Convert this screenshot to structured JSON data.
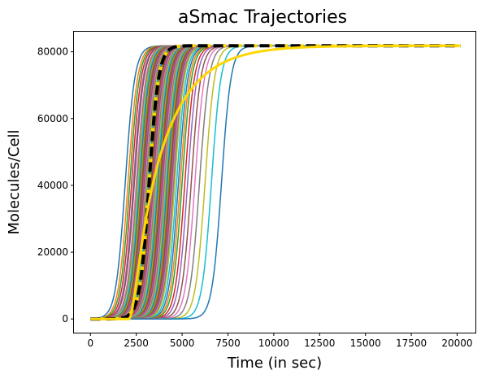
{
  "chart_data": {
    "type": "line",
    "title": "aSmac Trajectories",
    "xlabel": "Time (in sec)",
    "ylabel": "Molecules/Cell",
    "xlim": [
      -900,
      21000
    ],
    "ylim": [
      -4100,
      86000
    ],
    "xticks": [
      0,
      2500,
      5000,
      7500,
      10000,
      12500,
      15000,
      17500,
      20000
    ],
    "yticks": [
      0,
      20000,
      40000,
      60000,
      80000
    ],
    "grid": false,
    "legend": "none",
    "plateau": 81800,
    "x_end": 20200,
    "trajectory_half_max_times": [
      1900,
      2050,
      2150,
      2250,
      2350,
      2400,
      2500,
      2550,
      2600,
      2650,
      2700,
      2750,
      2800,
      2850,
      2900,
      2950,
      3000,
      3050,
      3100,
      3150,
      3200,
      3250,
      3300,
      3350,
      3400,
      3450,
      3500,
      3550,
      3600,
      3650,
      3700,
      3750,
      3800,
      3850,
      3900,
      3950,
      4000,
      4050,
      4100,
      4150,
      4200,
      4250,
      4300,
      4350,
      4400,
      4450,
      4500,
      4550,
      4600,
      4700,
      4800,
      4900,
      5000,
      5150,
      5300,
      5500,
      5700,
      5950,
      6250,
      6600,
      7150
    ],
    "trajectory_colors": [
      "#1f77b4",
      "#ff7f0e",
      "#2ca02c",
      "#d62728",
      "#9467bd",
      "#8c564b",
      "#e377c2",
      "#7f7f7f",
      "#bcbd22",
      "#17becf"
    ],
    "reference_curves": [
      {
        "style": "black-dashed",
        "color": "#000000",
        "half_max_time": 3200
      },
      {
        "style": "gold-slow",
        "color": "#ffd700",
        "half_max_time": 3400,
        "shape": "slow-saturating"
      },
      {
        "style": "gold-dashed",
        "color": "#ffd700",
        "half_max_time": 3200
      }
    ]
  }
}
